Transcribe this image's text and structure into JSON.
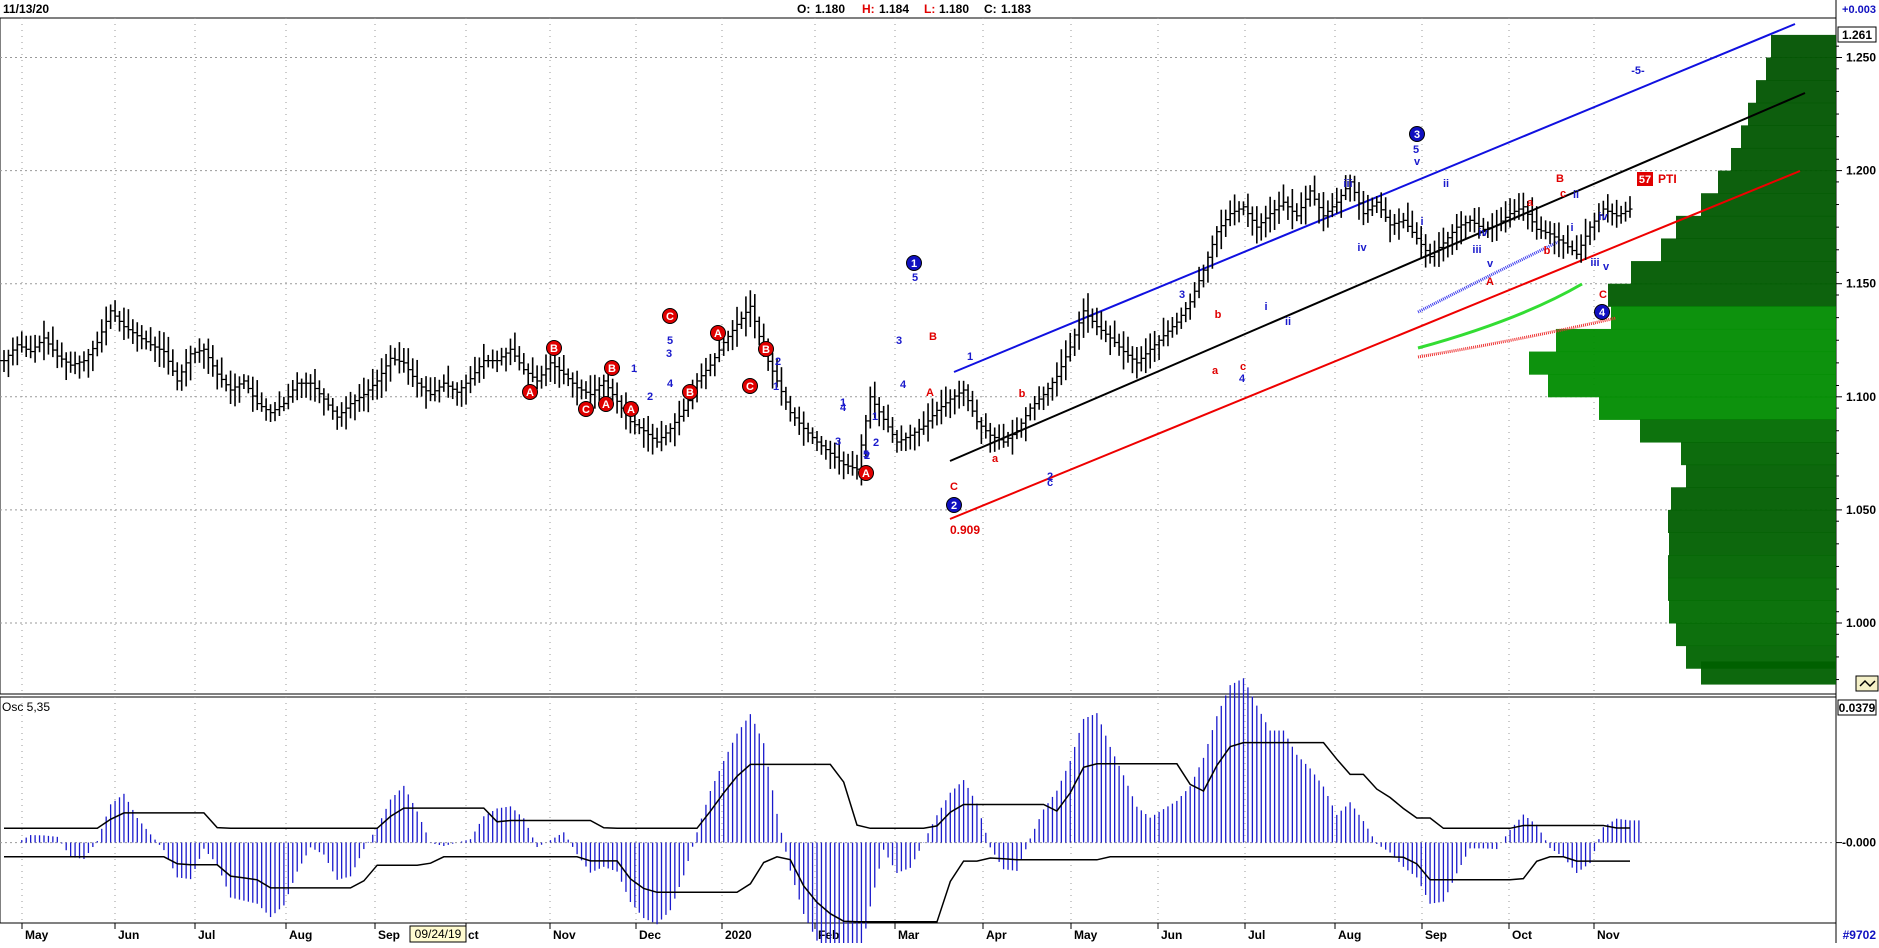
{
  "header": {
    "date": "11/13/20",
    "o_label": "O:",
    "o_value": "1.180",
    "h_label": "H:",
    "h_value": "1.184",
    "l_label": "L:",
    "l_value": "1.180",
    "c_label": "C:",
    "c_value": "1.183",
    "change": "+0.003"
  },
  "price_badge": "1.261",
  "osc_badge": "0.0379",
  "corner_code": "#9702",
  "cursor_date": "09/24/19",
  "colors": {
    "bar": "#000000",
    "grid": "#9a9a9a",
    "elliott_red": "#e00000",
    "elliott_blue": "#1a1acc",
    "channel_blue": "#1010e0",
    "channel_black": "#000000",
    "channel_red": "#ee0000",
    "volume_profile": "#0a5a0a",
    "osc_hist": "#1a1acc"
  },
  "chart_data": [
    {
      "type": "line",
      "panel": "price",
      "ylim": [
        0.975,
        1.265
      ],
      "y_ticks": [
        1.0,
        1.05,
        1.1,
        1.15,
        1.2,
        1.25
      ],
      "y_tick_labels": [
        "1.000",
        "1.050",
        "1.100",
        "1.150",
        "1.200",
        "1.250"
      ],
      "x_ticks": [
        "May",
        "Jun",
        "Jul",
        "Aug",
        "Sep",
        "Oct",
        "Nov",
        "Dec",
        "2020",
        "Feb",
        "Mar",
        "Apr",
        "May",
        "Jun",
        "Jul",
        "Aug",
        "Sep",
        "Oct",
        "Nov"
      ],
      "series": [
        {
          "values": [
            1.116,
            1.123,
            1.12,
            1.126,
            1.118,
            1.114,
            1.116,
            1.124,
            1.138,
            1.131,
            1.127,
            1.123,
            1.12,
            1.107,
            1.119,
            1.121,
            1.11,
            1.103,
            1.107,
            1.097,
            1.093,
            1.097,
            1.106,
            1.106,
            1.099,
            1.091,
            1.097,
            1.101,
            1.107,
            1.117,
            1.115,
            1.106,
            1.101,
            1.106,
            1.102,
            1.108,
            1.116,
            1.116,
            1.121,
            1.112,
            1.107,
            1.115,
            1.11,
            1.104,
            1.101,
            1.107,
            1.098,
            1.089,
            1.085,
            1.08,
            1.086,
            1.094,
            1.107,
            1.114,
            1.124,
            1.132,
            1.14,
            1.12,
            1.107,
            1.093,
            1.086,
            1.08,
            1.075,
            1.07,
            1.068,
            1.1,
            1.09,
            1.08,
            1.083,
            1.087,
            1.094,
            1.099,
            1.103,
            1.089,
            1.083,
            1.08,
            1.085,
            1.095,
            1.101,
            1.109,
            1.122,
            1.138,
            1.131,
            1.126,
            1.12,
            1.115,
            1.121,
            1.127,
            1.133,
            1.142,
            1.156,
            1.173,
            1.181,
            1.184,
            1.175,
            1.181,
            1.186,
            1.18,
            1.191,
            1.18,
            1.186,
            1.195,
            1.181,
            1.186,
            1.176,
            1.178,
            1.17,
            1.162,
            1.168,
            1.175,
            1.178,
            1.174,
            1.176,
            1.181,
            1.184,
            1.174,
            1.172,
            1.168,
            1.163,
            1.175,
            1.183,
            1.18,
            1.183
          ]
        }
      ],
      "wave_labels": [
        "A",
        "B",
        "C",
        "A",
        "B",
        "A",
        "C",
        "B",
        "A",
        "C",
        "B",
        "A",
        "C",
        "1",
        "2",
        "3",
        "4",
        "5",
        "1",
        "2",
        "1",
        "2",
        "3",
        "4",
        "5",
        "1",
        "2",
        "3",
        "4",
        "5",
        "B",
        "A",
        "C",
        "1",
        "a",
        "b",
        "c",
        "2",
        "3",
        "a",
        "b",
        "c",
        "4",
        "i",
        "ii",
        "iii",
        "iv",
        "v",
        "5",
        "i",
        "ii",
        "iii",
        "iv",
        "v",
        "A",
        "a",
        "b",
        "c",
        "B",
        "i",
        "ii",
        "iii",
        "iv",
        "v",
        "C",
        "-5-",
        "PTI",
        "57"
      ],
      "wave_circles": [
        "1",
        "2",
        "3",
        "4"
      ],
      "annotation": "0.909"
    },
    {
      "type": "bar",
      "panel": "oscillator",
      "title": "Osc 5,35",
      "ylim": [
        -0.022,
        0.04
      ],
      "y_tick_labels": [
        "-0.000"
      ],
      "note": "blue histogram oscillator with black upper/lower envelope lines"
    }
  ]
}
